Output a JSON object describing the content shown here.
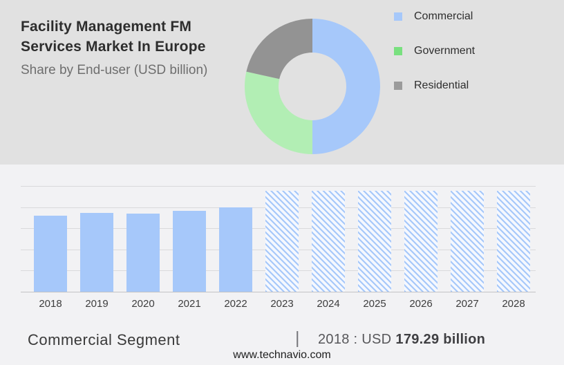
{
  "header": {
    "title_line1": "Facility Management FM",
    "title_line2": "Services Market In Europe",
    "subtitle": "Share by End-user (USD billion)"
  },
  "legend": {
    "items": [
      {
        "label": "Commercial",
        "color": "#a6c8fa"
      },
      {
        "label": "Government",
        "color": "#79e07f"
      },
      {
        "label": "Residential",
        "color": "#9b9b9b"
      }
    ]
  },
  "footer": {
    "segment_label": "Commercial Segment",
    "divider": "|",
    "value_prefix": "2018 : USD",
    "value_bold": "179.29 billion",
    "website": "www.technavio.com"
  },
  "theme": {
    "top_background": "#e1e1e1",
    "bottom_background": "#f2f2f4",
    "accent_blue": "#a6c8fa"
  },
  "chart_data": [
    {
      "type": "pie",
      "subtype": "donut",
      "labels": [
        "Commercial",
        "Government",
        "Residential"
      ],
      "values": [
        50,
        28.5,
        21.5
      ],
      "unit": "percent share, estimated from arc angles",
      "colors": [
        "#a6c8fa",
        "#b2eeb4",
        "#939393"
      ],
      "donut_hole_ratio": 0.5,
      "start_angle": "12 o'clock, clockwise",
      "legend_position": "right"
    },
    {
      "type": "bar",
      "categories": [
        "2018",
        "2019",
        "2020",
        "2021",
        "2022",
        "2023",
        "2024",
        "2025",
        "2026",
        "2027",
        "2028"
      ],
      "values": [
        179.29,
        186,
        184,
        191,
        199,
        238.5,
        238.5,
        238.5,
        238.5,
        238.5,
        238.5
      ],
      "forecast": [
        false,
        false,
        false,
        false,
        false,
        true,
        true,
        true,
        true,
        true,
        true
      ],
      "ylim": [
        0,
        250
      ],
      "grid_step": 50,
      "grid": "horizontal lines, no y-axis tick labels",
      "bar_color": "#a6c8fa",
      "hatch_background": "#f5f8fe",
      "note": "2018 value labeled in footer as USD 179.29 billion; other heights estimated from gridlines; 2023-2028 are hatched forecast placeholder bars"
    }
  ]
}
